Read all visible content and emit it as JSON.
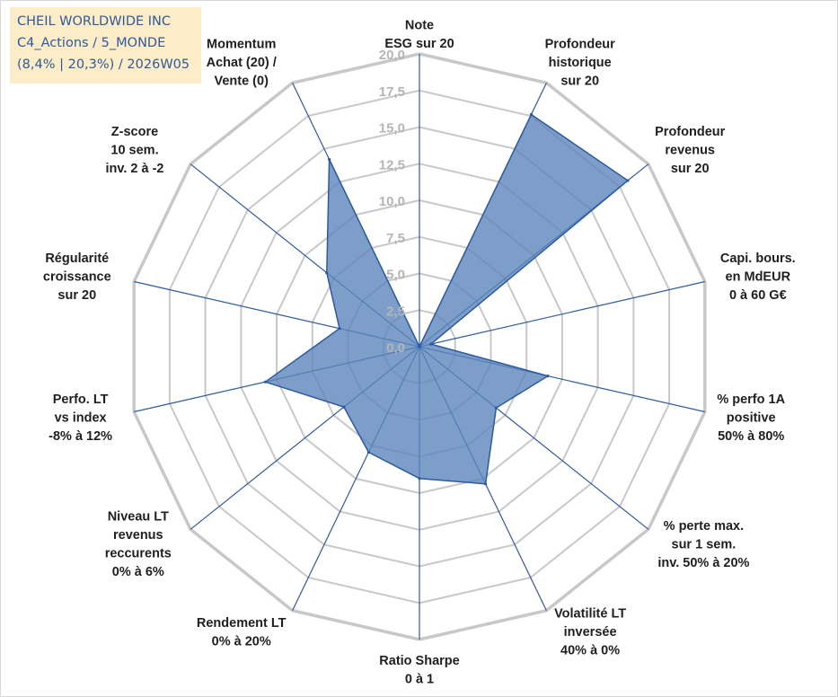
{
  "info_box": {
    "company": "CHEIL WORLDWIDE INC",
    "category": "C4_Actions / 5_MONDE",
    "stats": "(8,4% | 20,3%) / 2026W05"
  },
  "colors": {
    "fill": "#5b86bc",
    "stroke": "#2e5aa0",
    "spoke": "#2e5aa0",
    "grid": "#c8c8c8",
    "tick_text": "#b5b5b5",
    "info_bg": "#fdecc8",
    "info_text": "#2e5a9a"
  },
  "chart_data": {
    "type": "radar",
    "title": "",
    "rmin": 0,
    "rmax": 20,
    "tick_step": 2.5,
    "tick_labels": [
      "0,0",
      "2,5",
      "5,0",
      "7,5",
      "10,0",
      "12,5",
      "15,0",
      "17,5",
      "20,0"
    ],
    "axes": [
      {
        "label": [
          "Note",
          "ESG sur 20"
        ],
        "value": 0
      },
      {
        "label": [
          "Profondeur",
          "historique",
          "sur 20"
        ],
        "value": 17.6
      },
      {
        "label": [
          "Profondeur",
          "revenus",
          "sur 20"
        ],
        "value": 18.2
      },
      {
        "label": [
          "Capi. bours.",
          "en MdEUR",
          "0 à 60 G€"
        ],
        "value": 0.8
      },
      {
        "label": [
          "% perfo 1A",
          "positive",
          "50% à 80%"
        ],
        "value": 9.0
      },
      {
        "label": [
          "% perte max.",
          "sur 1 sem.",
          "inv. 50% à 20%"
        ],
        "value": 6.7
      },
      {
        "label": [
          "Volatilité LT",
          "inversée",
          "40% à 0%"
        ],
        "value": 10.4
      },
      {
        "label": [
          "Ratio Sharpe",
          "0 à 1"
        ],
        "value": 9.0
      },
      {
        "label": [
          "Rendement LT",
          "0% à 20%"
        ],
        "value": 8.0
      },
      {
        "label": [
          "Niveau LT",
          "revenus",
          "reccurents",
          "0% à 6%"
        ],
        "value": 6.6
      },
      {
        "label": [
          "Perfo. LT",
          "vs index",
          "-8% à 12%"
        ],
        "value": 10.8
      },
      {
        "label": [
          "Régularité",
          "croissance",
          "sur 20"
        ],
        "value": 5.6
      },
      {
        "label": [
          "Z-score",
          "10 sem.",
          "inv. 2 à -2"
        ],
        "value": 8.1
      },
      {
        "label": [
          "Momentum",
          "Achat (20) /",
          "Vente (0)"
        ],
        "value": 14.2
      }
    ]
  }
}
